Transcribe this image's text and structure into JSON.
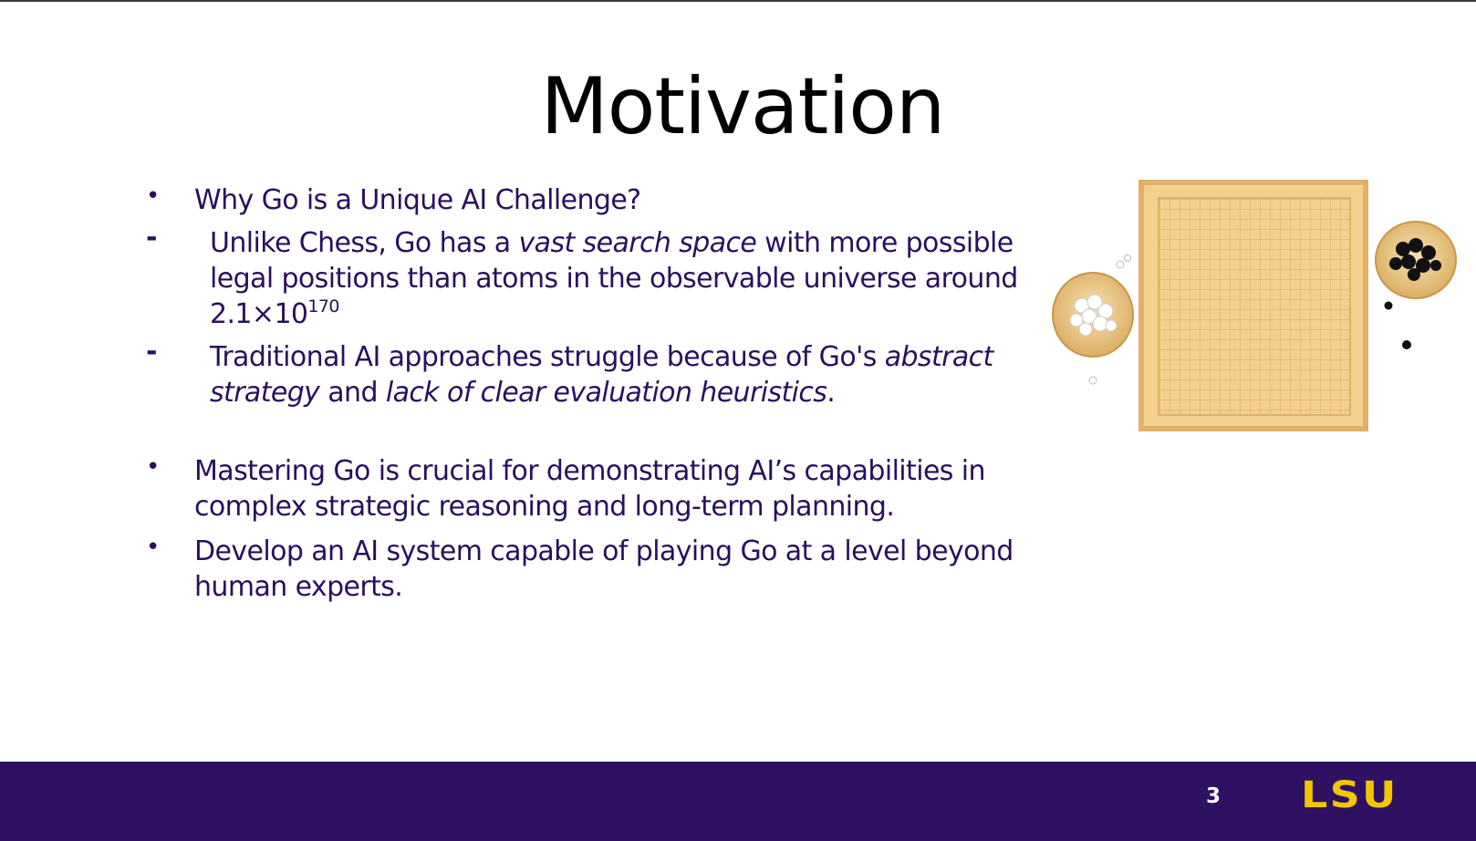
{
  "slide": {
    "title": "Motivation",
    "bullets": [
      {
        "marker": "•",
        "text": "Why Go is a Unique AI Challenge?"
      },
      {
        "marker": "-",
        "parts": [
          "Unlike Chess, Go has a ",
          "vast search space",
          " with more possible legal positions than atoms in the observable universe around 2.1×10",
          "170"
        ]
      },
      {
        "marker": "-",
        "parts": [
          "Traditional AI approaches struggle because of Go's ",
          "abstract strategy",
          " and ",
          "lack of clear evaluation heuristics",
          "."
        ]
      },
      {
        "marker": "•",
        "text": "Mastering Go is crucial for demonstrating AI’s capabilities in complex strategic reasoning and long-term planning."
      },
      {
        "marker": "•",
        "text": "Develop an AI system capable of playing Go at a level beyond human experts."
      }
    ]
  },
  "illustration": {
    "icon": "go-board-with-stone-bowls-icon",
    "board_color": "#f3d08c",
    "board_edge_color": "#e5b062",
    "grid_color": "#d9a85a",
    "white_stone_color": "#ffffff",
    "black_stone_color": "#111111"
  },
  "footer": {
    "page_number": "3",
    "logo_text": "LSU",
    "background_color": "#2f1163",
    "logo_color": "#f2c500"
  }
}
